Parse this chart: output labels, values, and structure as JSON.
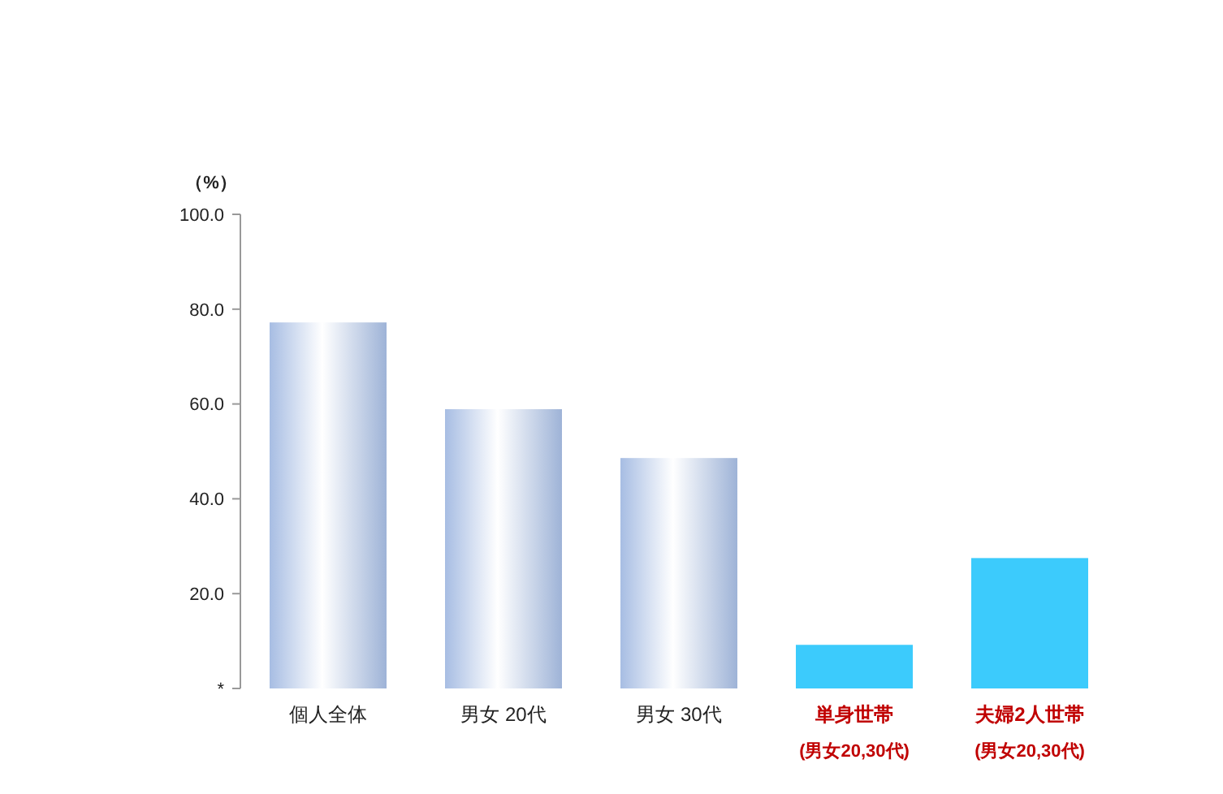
{
  "chart_data": {
    "type": "bar",
    "ylabel": "（%）",
    "categories": [
      "個人全体",
      "男女 20代",
      "男女 30代",
      "単身世帯\n(男女20,30代)",
      "夫婦2人世帯\n(男女20,30代)"
    ],
    "values": [
      77.2,
      58.9,
      48.6,
      9.2,
      27.5
    ],
    "colors": [
      "#a7bde3",
      "#a7bde3",
      "#a7bde3",
      "#3ccbfc",
      "#3ccbfc"
    ],
    "ylim": [
      0,
      100
    ],
    "yticks": [
      {
        "value": 0,
        "label": "*"
      },
      {
        "value": 20,
        "label": "20.0"
      },
      {
        "value": 40,
        "label": "40.0"
      },
      {
        "value": 60,
        "label": "60.0"
      },
      {
        "value": 80,
        "label": "80.0"
      },
      {
        "value": 100,
        "label": "100.0"
      }
    ]
  }
}
